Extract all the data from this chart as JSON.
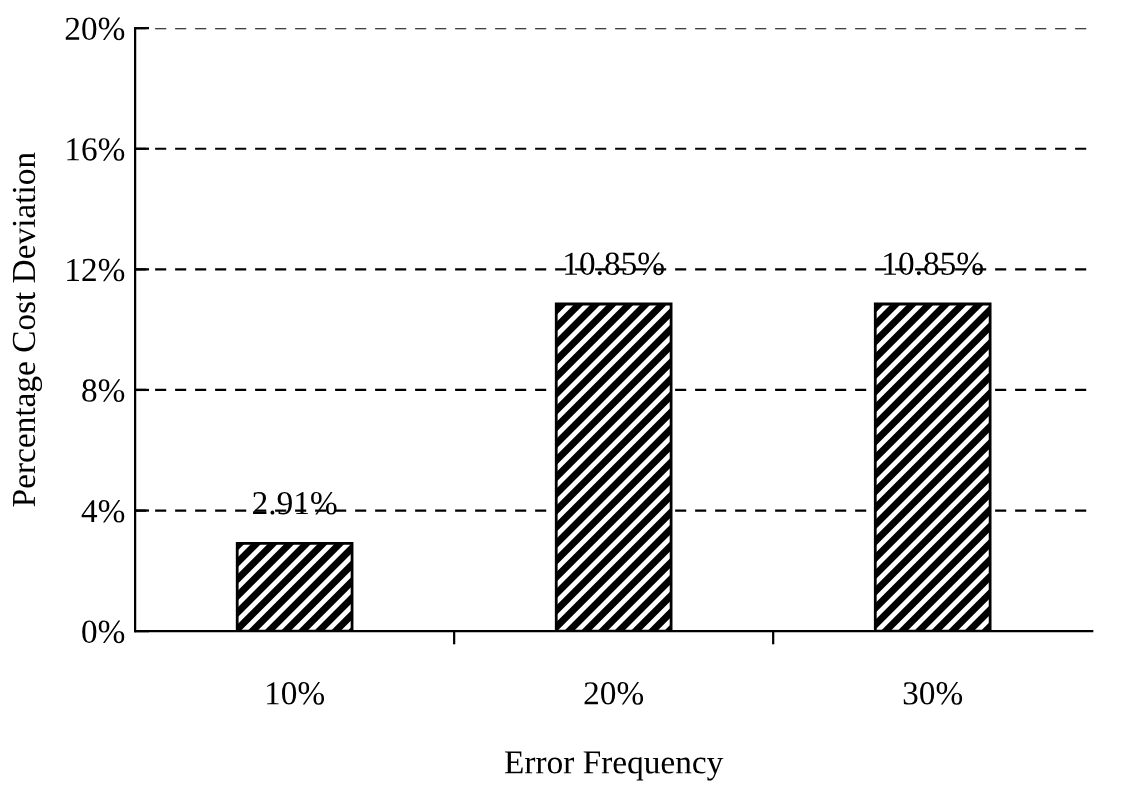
{
  "chart_data": {
    "type": "bar",
    "xlabel": "Error Frequency",
    "ylabel": "Percentage Cost Deviation",
    "categories": [
      "10%",
      "20%",
      "30%"
    ],
    "values": [
      2.91,
      10.85,
      10.85
    ],
    "value_labels": [
      "2.91%",
      "10.85%",
      "10.85%"
    ],
    "color": "#000000",
    "ylim": [
      0,
      20
    ],
    "yticks": [
      {
        "value": 0,
        "label": "0%"
      },
      {
        "value": 4,
        "label": "4%"
      },
      {
        "value": 8,
        "label": "8%"
      },
      {
        "value": 12,
        "label": "12%"
      },
      {
        "value": 16,
        "label": "16%"
      },
      {
        "value": 20,
        "label": "20%"
      }
    ],
    "grid": "y"
  }
}
